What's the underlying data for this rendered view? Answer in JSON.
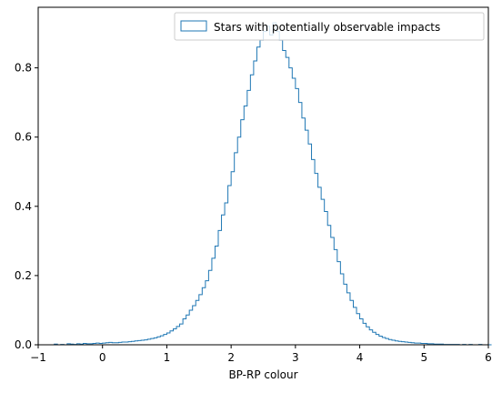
{
  "chart_data": {
    "type": "histogram",
    "histtype": "step",
    "title": "",
    "xlabel": "BP-RP colour",
    "ylabel": "",
    "xlim": [
      -1,
      6
    ],
    "ylim": [
      0,
      0.975
    ],
    "xticks": [
      -1,
      0,
      1,
      2,
      3,
      4,
      5,
      6
    ],
    "xtick_labels": [
      "−1",
      "0",
      "1",
      "2",
      "3",
      "4",
      "5",
      "6"
    ],
    "yticks": [
      0.0,
      0.2,
      0.4,
      0.6,
      0.8
    ],
    "ytick_labels": [
      "0.0",
      "0.2",
      "0.4",
      "0.6",
      "0.8"
    ],
    "grid": false,
    "legend_position": "top-right",
    "series": [
      {
        "name": "Stars with potentially observable impacts",
        "color": "#1f77b4",
        "bin_width": 0.05,
        "bin_edges_start": -0.75,
        "values": [
          0.002,
          0.0,
          0.001,
          0.0,
          0.003,
          0.002,
          0.001,
          0.003,
          0.002,
          0.004,
          0.003,
          0.003,
          0.004,
          0.005,
          0.004,
          0.005,
          0.006,
          0.007,
          0.006,
          0.006,
          0.007,
          0.008,
          0.008,
          0.009,
          0.01,
          0.011,
          0.012,
          0.013,
          0.014,
          0.016,
          0.018,
          0.02,
          0.023,
          0.026,
          0.03,
          0.034,
          0.04,
          0.046,
          0.053,
          0.06,
          0.075,
          0.086,
          0.1,
          0.113,
          0.128,
          0.145,
          0.165,
          0.185,
          0.215,
          0.25,
          0.285,
          0.33,
          0.375,
          0.41,
          0.46,
          0.5,
          0.555,
          0.6,
          0.65,
          0.69,
          0.735,
          0.78,
          0.82,
          0.86,
          0.88,
          0.905,
          0.92,
          0.895,
          0.93,
          0.905,
          0.88,
          0.85,
          0.83,
          0.8,
          0.77,
          0.74,
          0.7,
          0.655,
          0.62,
          0.58,
          0.535,
          0.495,
          0.455,
          0.42,
          0.385,
          0.345,
          0.31,
          0.275,
          0.24,
          0.205,
          0.175,
          0.15,
          0.128,
          0.108,
          0.09,
          0.075,
          0.062,
          0.052,
          0.043,
          0.036,
          0.03,
          0.025,
          0.021,
          0.018,
          0.015,
          0.013,
          0.011,
          0.01,
          0.009,
          0.008,
          0.007,
          0.006,
          0.005,
          0.005,
          0.004,
          0.004,
          0.003,
          0.003,
          0.002,
          0.002,
          0.002,
          0.001,
          0.001,
          0.001,
          0.001,
          0.001,
          0.0,
          0.001,
          0.0,
          0.001,
          0.0,
          0.0,
          0.001,
          0.0,
          0.0,
          0.0
        ]
      }
    ]
  }
}
